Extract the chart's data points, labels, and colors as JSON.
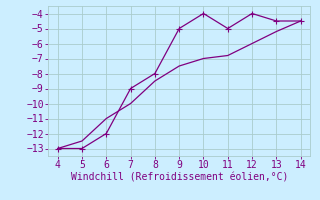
{
  "line1_x": [
    4,
    5,
    6,
    7,
    8,
    9,
    10,
    11,
    12,
    13,
    14
  ],
  "line1_y": [
    -13.0,
    -13.0,
    -12.0,
    -9.0,
    -8.0,
    -5.0,
    -4.0,
    -5.0,
    -4.0,
    -4.5,
    -4.5
  ],
  "line2_x": [
    4,
    5,
    6,
    7,
    8,
    9,
    10,
    11,
    12,
    13,
    14
  ],
  "line2_y": [
    -13.0,
    -12.5,
    -11.0,
    -10.0,
    -8.5,
    -7.5,
    -7.0,
    -6.8,
    -6.0,
    -5.2,
    -4.5
  ],
  "line_color": "#800080",
  "bg_color": "#cceeff",
  "grid_color": "#aacccc",
  "xlabel": "Windchill (Refroidissement éolien,°C)",
  "xlabel_color": "#800080",
  "xlabel_fontsize": 7,
  "xlim": [
    3.6,
    14.4
  ],
  "ylim": [
    -13.5,
    -3.5
  ],
  "xticks": [
    4,
    5,
    6,
    7,
    8,
    9,
    10,
    11,
    12,
    13,
    14
  ],
  "yticks": [
    -4,
    -5,
    -6,
    -7,
    -8,
    -9,
    -10,
    -11,
    -12,
    -13
  ],
  "tick_color": "#800080",
  "tick_fontsize": 7,
  "marker_size": 2.5,
  "line_width": 0.9
}
